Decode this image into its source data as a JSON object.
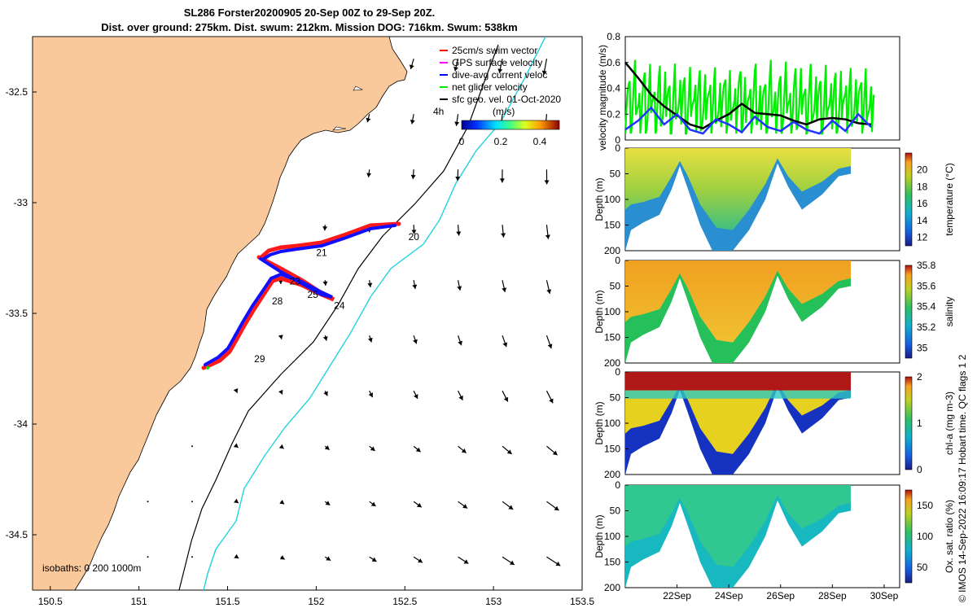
{
  "header": {
    "title_line1": "SL286 Forster20200905 20-Sep 00Z to 29-Sep 20Z.",
    "title_line2": "Dist. over ground: 275km. Dist. swum: 212km. Mission DOG: 716km. Swum: 538km"
  },
  "side_label": "© IMOS 14-Sep-2022 16:09:17 Hobart time. QC flags 1  2",
  "chart_data": [
    {
      "type": "scatter",
      "panel": "map",
      "xlim": [
        150.4,
        153.5
      ],
      "ylim": [
        -34.75,
        -32.25
      ],
      "xticks": [
        "150.5",
        "151",
        "151.5",
        "152",
        "152.5",
        "153",
        "153.5"
      ],
      "yticks": [
        "-32.5",
        "-33",
        "-33.5",
        "-34",
        "-34.5"
      ],
      "legend": {
        "position": "top-right",
        "entries": [
          {
            "label": "25cm/s swim vector",
            "color": "#ff0000"
          },
          {
            "label": "GPS surface velocity",
            "color": "#ff00ff"
          },
          {
            "label": "dive-avg current veloc",
            "color": "#0000ff"
          },
          {
            "label": "net glider velocity",
            "color": "#00ee00"
          },
          {
            "label": "sfc geo. vel. 01-Oct-2020",
            "color": "#000000"
          }
        ]
      },
      "colorbar": {
        "label": "(m/s)",
        "ticks": [
          "0",
          "0.2",
          "0.4"
        ],
        "range": [
          0,
          0.5
        ]
      },
      "scale_label": "4h",
      "isobaths_label": "isobaths: 0   200  1000m",
      "day_labels": [
        {
          "text": "20",
          "x": 152.52,
          "y": -33.17
        },
        {
          "text": "21",
          "x": 152.0,
          "y": -33.24
        },
        {
          "text": "23",
          "x": 151.85,
          "y": -33.37
        },
        {
          "text": "25",
          "x": 151.95,
          "y": -33.43
        },
        {
          "text": "24",
          "x": 152.1,
          "y": -33.48
        },
        {
          "text": "28",
          "x": 151.75,
          "y": -33.46
        },
        {
          "text": "29",
          "x": 151.65,
          "y": -33.72
        }
      ]
    },
    {
      "type": "line",
      "panel": "velocity",
      "ylabel": "velocity magnitude (m/s)",
      "ylim": [
        0,
        0.8
      ],
      "yticks": [
        "0",
        "0.2",
        "0.4",
        "0.6",
        "0.8"
      ],
      "x": [
        20,
        20.5,
        21,
        21.5,
        22,
        22.5,
        23,
        23.5,
        24,
        24.5,
        25,
        25.5,
        26,
        26.5,
        27,
        27.5,
        28,
        28.5,
        29,
        29.5
      ],
      "series": [
        {
          "color": "#00ee00",
          "values": [
            0.62,
            0.5,
            0.45,
            0.38,
            0.32,
            0.33,
            0.28,
            0.3,
            0.32,
            0.35,
            0.3,
            0.36,
            0.34,
            0.3,
            0.33,
            0.36,
            0.35,
            0.38,
            0.32,
            0.28
          ]
        },
        {
          "color": "#000000",
          "values": [
            0.6,
            0.48,
            0.35,
            0.26,
            0.19,
            0.12,
            0.09,
            0.15,
            0.2,
            0.28,
            0.21,
            0.2,
            0.19,
            0.15,
            0.12,
            0.16,
            0.17,
            0.16,
            0.13,
            0.12
          ]
        },
        {
          "color": "#2233ff",
          "values": [
            0.08,
            0.15,
            0.25,
            0.12,
            0.2,
            0.08,
            0.05,
            0.16,
            0.12,
            0.06,
            0.18,
            0.1,
            0.07,
            0.14,
            0.08,
            0.05,
            0.15,
            0.07,
            0.2,
            0.1
          ]
        }
      ]
    },
    {
      "type": "heatmap",
      "panel": "temperature",
      "ylabel": "Depth (m)",
      "yticks": [
        "0",
        "50",
        "100",
        "150",
        "200"
      ],
      "colorbar_label": "temperature (°C)",
      "colorbar_ticks": [
        "12",
        "14",
        "16",
        "18",
        "20"
      ],
      "colorbar_range": [
        11,
        22
      ]
    },
    {
      "type": "heatmap",
      "panel": "salinity",
      "ylabel": "Depth (m)",
      "yticks": [
        "0",
        "50",
        "100",
        "150",
        "200"
      ],
      "colorbar_label": "salinity",
      "colorbar_ticks": [
        "35",
        "35.2",
        "35.4",
        "35.6",
        "35.8"
      ],
      "colorbar_range": [
        34.9,
        35.8
      ]
    },
    {
      "type": "heatmap",
      "panel": "chlorophyll",
      "ylabel": "Depth (m)",
      "yticks": [
        "0",
        "50",
        "100",
        "150",
        "200"
      ],
      "colorbar_label": "chl-a (mg m-3)",
      "colorbar_ticks": [
        "0",
        "1",
        "2"
      ],
      "colorbar_range": [
        0,
        2
      ]
    },
    {
      "type": "heatmap",
      "panel": "oxygen",
      "ylabel": "Depth (m)",
      "yticks": [
        "0",
        "50",
        "100",
        "150",
        "200"
      ],
      "colorbar_label": "Ox. sat. ratio (%)",
      "colorbar_ticks": [
        "50",
        "100",
        "150"
      ],
      "colorbar_range": [
        25,
        175
      ],
      "xticks": [
        "22Sep",
        "24Sep",
        "26Sep",
        "28Sep",
        "30Sep"
      ]
    }
  ]
}
